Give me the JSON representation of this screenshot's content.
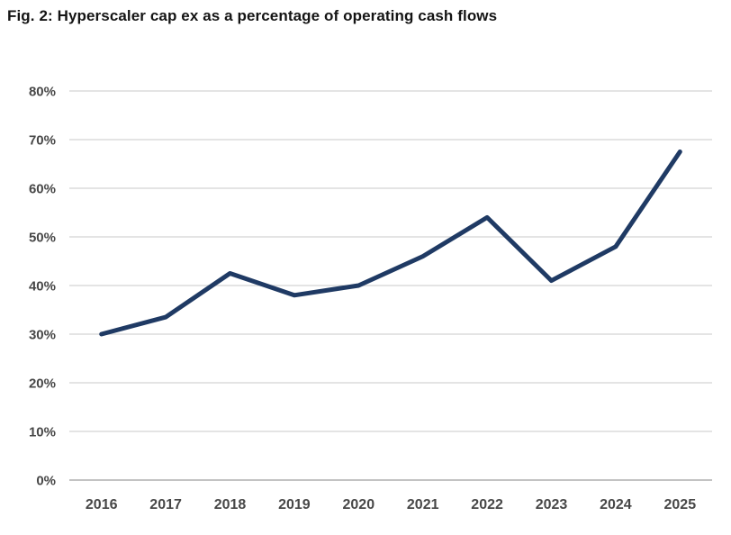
{
  "chart_data": {
    "type": "line",
    "title": "Fig. 2: Hyperscaler cap ex as a percentage of operating cash flows",
    "categories": [
      "2016",
      "2017",
      "2018",
      "2019",
      "2020",
      "2021",
      "2022",
      "2023",
      "2024",
      "2025"
    ],
    "series": [
      {
        "name": "Hyperscaler cap ex as % of operating cash flows",
        "values": [
          30,
          33.5,
          42.5,
          38,
          40,
          46,
          54,
          41,
          48,
          67.5
        ]
      }
    ],
    "xlabel": "",
    "ylabel": "",
    "ylim": [
      0,
      80
    ],
    "yticks": [
      {
        "value": 0,
        "label": "0%"
      },
      {
        "value": 10,
        "label": "10%"
      },
      {
        "value": 20,
        "label": "20%"
      },
      {
        "value": 30,
        "label": "30%"
      },
      {
        "value": 40,
        "label": "40%"
      },
      {
        "value": 50,
        "label": "50%"
      },
      {
        "value": 60,
        "label": "60%"
      },
      {
        "value": 70,
        "label": "70%"
      },
      {
        "value": 80,
        "label": "80%"
      }
    ],
    "grid": "horizontal",
    "legend": "none",
    "colors": {
      "line": "#1f3a64",
      "grid": "#dcdcdc",
      "axis": "#c3c3c3",
      "tick_text": "#474747",
      "title_text": "#141414",
      "background": "#ffffff"
    }
  }
}
